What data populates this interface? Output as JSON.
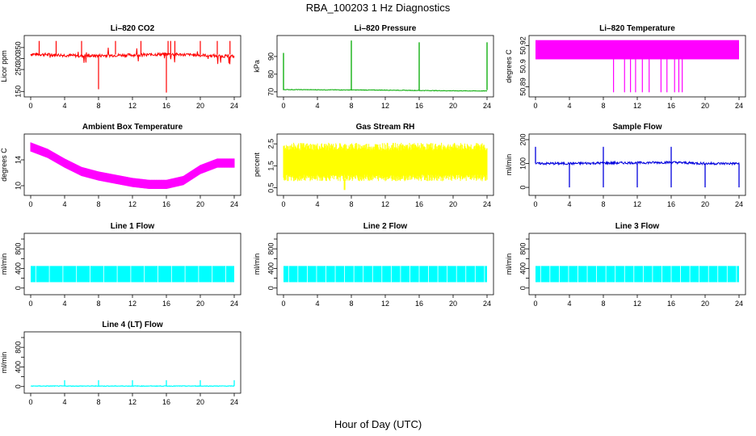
{
  "title": "RBA_100203  1 Hz Diagnostics",
  "xlabel": "Hour of Day (UTC)",
  "chart_data": [
    {
      "type": "line",
      "title": "Li–820 CO2",
      "ylabel": "Licor ppm",
      "color": "#ff0000",
      "xlim": [
        0,
        24
      ],
      "ylim": [
        140,
        390
      ],
      "yticks": [
        150,
        250,
        300,
        350
      ],
      "xticks": [
        0,
        4,
        8,
        12,
        16,
        20,
        24
      ],
      "series": [
        {
          "x": [
            0,
            2,
            4,
            6,
            8,
            10,
            12,
            14,
            16,
            18,
            20,
            22,
            24
          ],
          "values": [
            320,
            318,
            315,
            312,
            313,
            315,
            316,
            318,
            320,
            318,
            315,
            312,
            310
          ]
        }
      ]
    },
    {
      "type": "line",
      "title": "Li–820 Pressure",
      "ylabel": "kPa",
      "color": "#00aa00",
      "xlim": [
        0,
        24
      ],
      "ylim": [
        69,
        100
      ],
      "yticks": [
        70,
        80,
        90
      ],
      "xticks": [
        0,
        4,
        8,
        12,
        16,
        20,
        24
      ],
      "series": [
        {
          "x": [
            0,
            4,
            8,
            12,
            16,
            20,
            24
          ],
          "values": [
            71.3,
            71.2,
            71.1,
            71.0,
            70.8,
            70.6,
            70.5
          ]
        }
      ]
    },
    {
      "type": "area",
      "title": "Li–820 Temperature",
      "ylabel": "degrees C",
      "color": "#ff00ff",
      "xlim": [
        0,
        24
      ],
      "ylim": [
        50.885,
        50.925
      ],
      "yticks": [
        50.89,
        50.92
      ],
      "ytick_labels": [
        "50.89",
        "50.92"
      ],
      "ytick_mid": [
        "50.9"
      ],
      "xticks": [
        0,
        4,
        8,
        12,
        16,
        20,
        24
      ],
      "series": [
        {
          "x": [
            0,
            24
          ],
          "values": [
            50.91,
            50.91
          ]
        }
      ]
    },
    {
      "type": "line",
      "title": "Ambient Box Temperature",
      "ylabel": "degrees C",
      "color": "#ff00ff",
      "xlim": [
        0,
        24
      ],
      "ylim": [
        9,
        17.5
      ],
      "yticks": [
        10,
        14
      ],
      "xticks": [
        0,
        4,
        8,
        12,
        16,
        20,
        24
      ],
      "series": [
        {
          "x": [
            0,
            2,
            4,
            6,
            8,
            10,
            12,
            14,
            16,
            18,
            20,
            22,
            24
          ],
          "values": [
            16,
            15,
            13.5,
            12.2,
            11.5,
            11,
            10.5,
            10.2,
            10.2,
            10.8,
            12.5,
            13.5,
            13.5
          ]
        }
      ]
    },
    {
      "type": "area",
      "title": "Gas Stream RH",
      "ylabel": "percent",
      "color": "#ffff00",
      "xlim": [
        0,
        24
      ],
      "ylim": [
        0.3,
        2.8
      ],
      "yticks": [
        0.5,
        1.5,
        2.5
      ],
      "xticks": [
        0,
        4,
        8,
        12,
        16,
        20,
        24
      ],
      "series": [
        {
          "x": [
            0,
            24
          ],
          "values": [
            1.6,
            1.6
          ]
        }
      ]
    },
    {
      "type": "line",
      "title": "Sample Flow",
      "ylabel": "ml/min",
      "color": "#0000dd",
      "xlim": [
        0,
        24
      ],
      "ylim": [
        -20,
        210
      ],
      "yticks": [
        0,
        100,
        200
      ],
      "xticks": [
        0,
        4,
        8,
        12,
        16,
        20,
        24
      ],
      "series": [
        {
          "x": [
            0,
            4,
            8,
            12,
            16,
            20,
            24
          ],
          "values": [
            100,
            100,
            102,
            103,
            105,
            100,
            100
          ]
        }
      ]
    },
    {
      "type": "area",
      "title": "Line 1 Flow",
      "ylabel": "ml/min",
      "color": "#00ffff",
      "xlim": [
        0,
        24
      ],
      "ylim": [
        -70,
        1050
      ],
      "yticks": [
        0,
        200,
        400,
        600,
        800,
        1000
      ],
      "ytick_shown": [
        "0",
        "400",
        "800"
      ],
      "xticks": [
        0,
        4,
        8,
        12,
        16,
        20,
        24
      ],
      "series": [
        {
          "x": [
            0,
            24
          ],
          "values": [
            300,
            300
          ]
        }
      ]
    },
    {
      "type": "area",
      "title": "Line 2 Flow",
      "ylabel": "ml/min",
      "color": "#00ffff",
      "xlim": [
        0,
        24
      ],
      "ylim": [
        -70,
        1050
      ],
      "yticks": [
        0,
        200,
        400,
        600,
        800,
        1000
      ],
      "ytick_shown": [
        "0",
        "400",
        "800"
      ],
      "xticks": [
        0,
        4,
        8,
        12,
        16,
        20,
        24
      ],
      "series": [
        {
          "x": [
            0,
            24
          ],
          "values": [
            300,
            300
          ]
        }
      ]
    },
    {
      "type": "area",
      "title": "Line 3 Flow",
      "ylabel": "ml/min",
      "color": "#00ffff",
      "xlim": [
        0,
        24
      ],
      "ylim": [
        -70,
        1050
      ],
      "yticks": [
        0,
        200,
        400,
        600,
        800,
        1000
      ],
      "ytick_shown": [
        "0",
        "400",
        "800"
      ],
      "xticks": [
        0,
        4,
        8,
        12,
        16,
        20,
        24
      ],
      "series": [
        {
          "x": [
            0,
            24
          ],
          "values": [
            300,
            300
          ]
        }
      ]
    },
    {
      "type": "line",
      "title": "Line 4 (LT) Flow",
      "ylabel": "ml/min",
      "color": "#00ffff",
      "xlim": [
        0,
        24
      ],
      "ylim": [
        -70,
        1050
      ],
      "yticks": [
        0,
        200,
        400,
        600,
        800,
        1000
      ],
      "ytick_shown": [
        "0",
        "400",
        "800"
      ],
      "xticks": [
        0,
        4,
        8,
        12,
        16,
        20,
        24
      ],
      "series": [
        {
          "x": [
            0,
            24
          ],
          "values": [
            10,
            10
          ]
        }
      ]
    }
  ]
}
